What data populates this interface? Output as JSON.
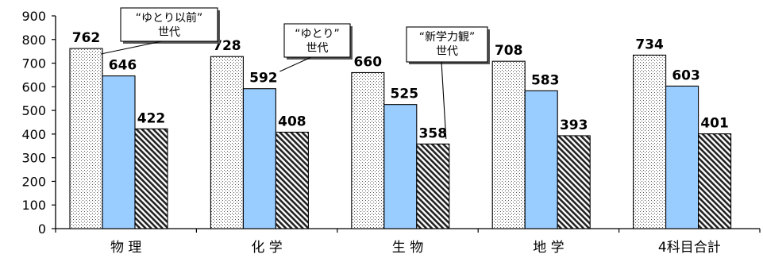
{
  "chart_data": {
    "type": "bar",
    "title": "",
    "xlabel": "",
    "ylabel": "",
    "ylim": [
      0,
      900
    ],
    "yticks": [
      0,
      100,
      200,
      300,
      400,
      500,
      600,
      700,
      800,
      900
    ],
    "grid": false,
    "categories": [
      "物 理",
      "化 学",
      "生 物",
      "地 学",
      "4科目合計"
    ],
    "series": [
      {
        "name": "“ゆとり以前”世代",
        "values": [
          762,
          728,
          660,
          708,
          734
        ],
        "pattern": "dots",
        "color": "#ffffff"
      },
      {
        "name": "“ゆとり”世代",
        "values": [
          646,
          592,
          525,
          583,
          603
        ],
        "pattern": "solid",
        "color": "#99ccff"
      },
      {
        "name": "“新学力観”世代",
        "values": [
          422,
          408,
          358,
          393,
          401
        ],
        "pattern": "diagonal-hatch",
        "color": "#ffffff"
      }
    ],
    "callouts": [
      {
        "lines": [
          "“ゆとり以前”",
          "世代"
        ],
        "series": 0
      },
      {
        "lines": [
          "“ゆとり”",
          "世代"
        ],
        "series": 1
      },
      {
        "lines": [
          "“新学力観”",
          "世代"
        ],
        "series": 2
      }
    ]
  }
}
